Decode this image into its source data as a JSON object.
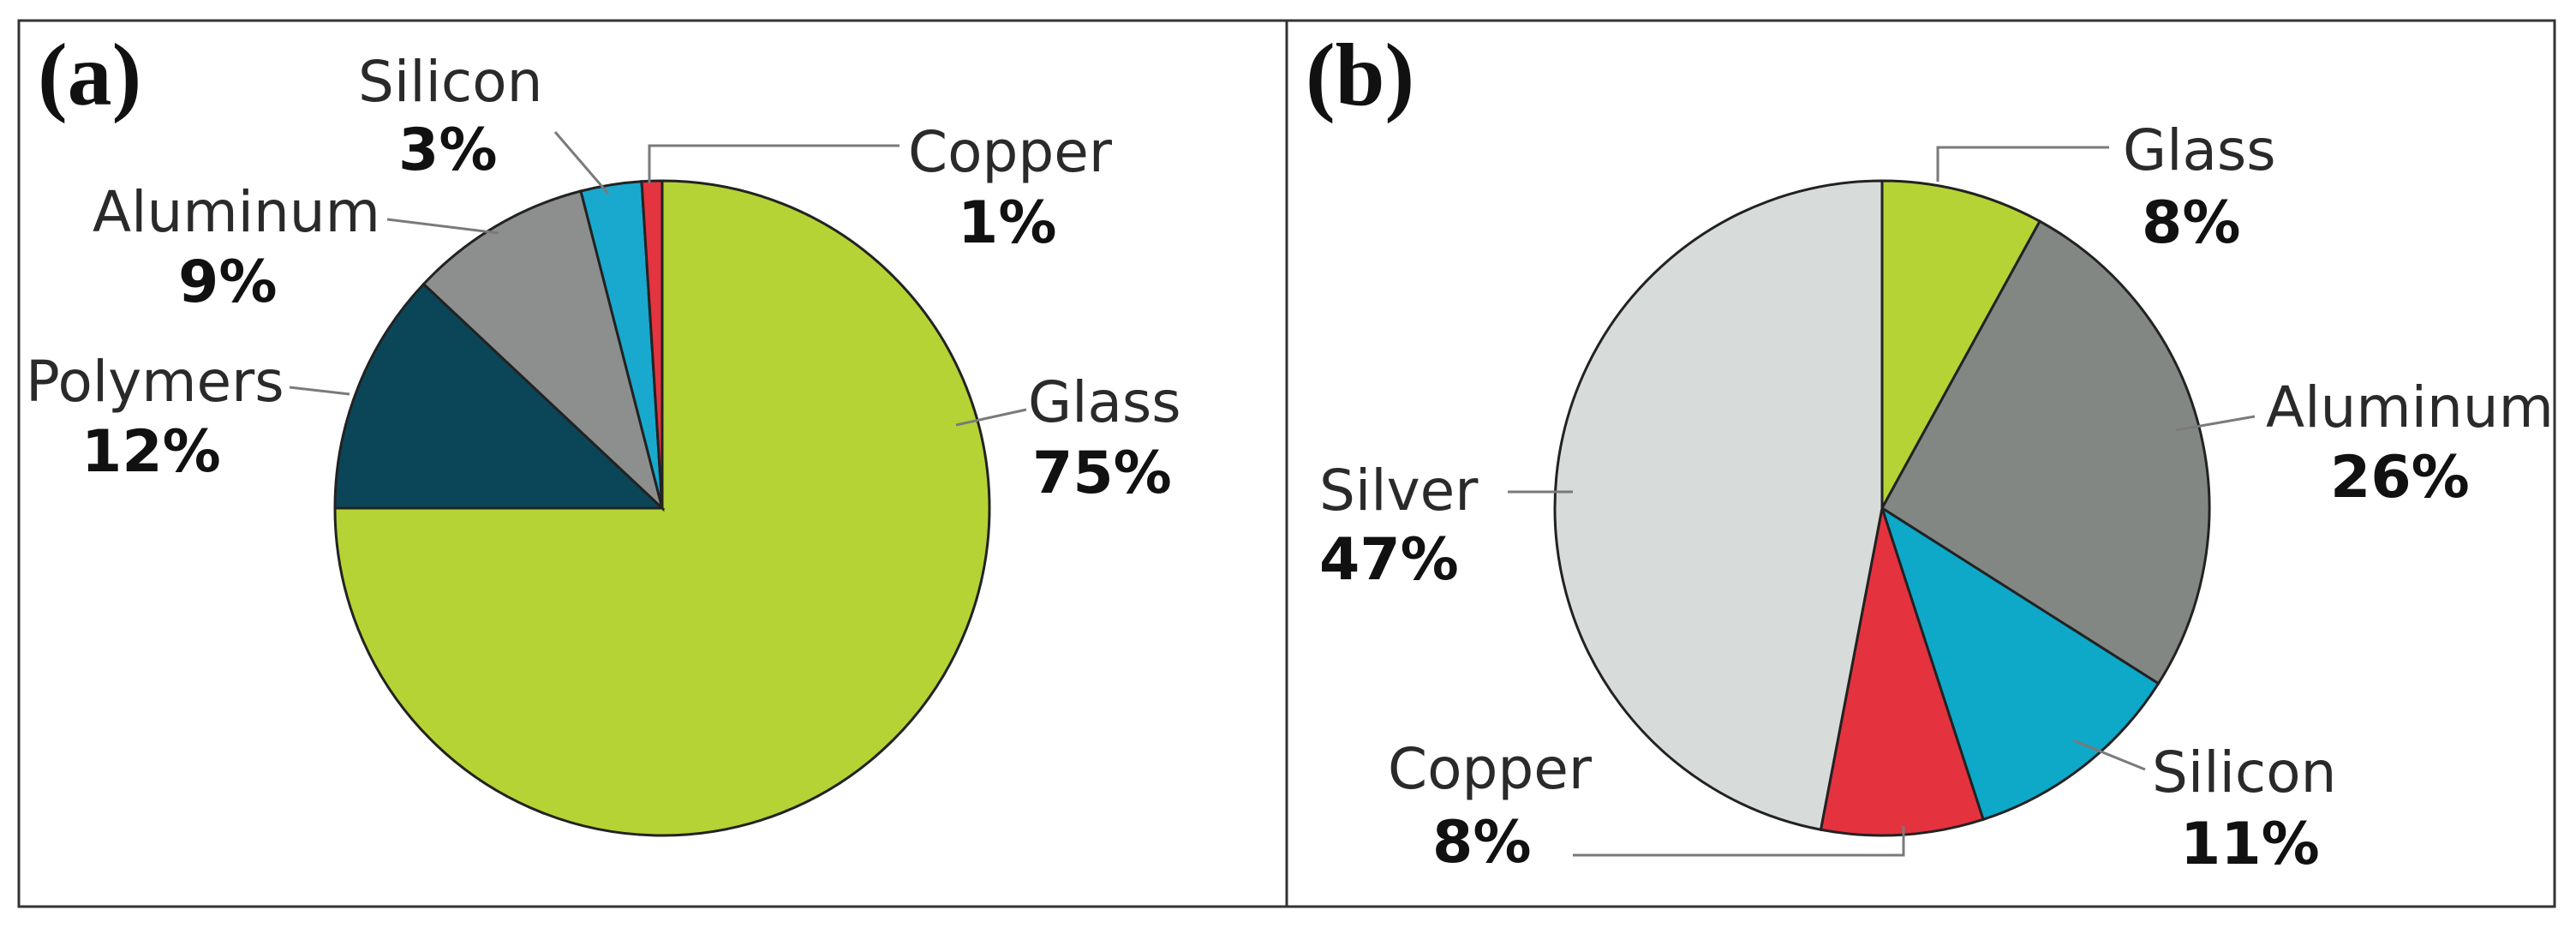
{
  "chart_data": [
    {
      "type": "pie",
      "panel_label": "(a)",
      "title": "",
      "slices": [
        {
          "label": "Glass",
          "value": 75,
          "value_label": "75%",
          "color": "#b5d334"
        },
        {
          "label": "Polymers",
          "value": 12,
          "value_label": "12%",
          "color": "#0b4658"
        },
        {
          "label": "Aluminum",
          "value": 9,
          "value_label": "9%",
          "color": "#8c8f8d"
        },
        {
          "label": "Silicon",
          "value": 3,
          "value_label": "3%",
          "color": "#19a9ce"
        },
        {
          "label": "Copper",
          "value": 1,
          "value_label": "1%",
          "color": "#e3343f"
        }
      ]
    },
    {
      "type": "pie",
      "panel_label": "(b)",
      "title": "",
      "slices": [
        {
          "label": "Glass",
          "value": 8,
          "value_label": "8%",
          "color": "#b5d334"
        },
        {
          "label": "Aluminum",
          "value": 26,
          "value_label": "26%",
          "color": "#838784"
        },
        {
          "label": "Silicon",
          "value": 11,
          "value_label": "11%",
          "color": "#0ea8c9"
        },
        {
          "label": "Copper",
          "value": 8,
          "value_label": "8%",
          "color": "#e5323f"
        },
        {
          "label": "Silver",
          "value": 47,
          "value_label": "47%",
          "color": "#d7dbd9"
        }
      ]
    }
  ]
}
